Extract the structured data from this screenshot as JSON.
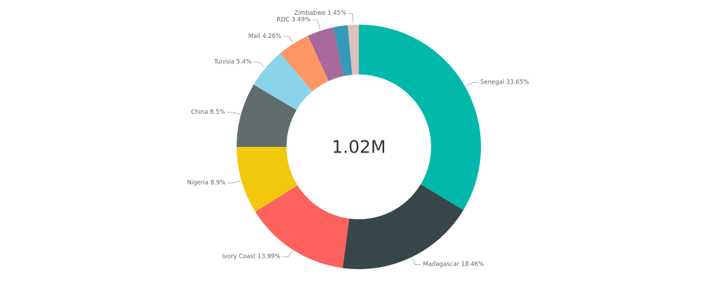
{
  "chart_data": {
    "type": "pie",
    "donut": true,
    "center_label": "1.02M",
    "legend": "none",
    "slices": [
      {
        "name": "Senegal",
        "value": 33.65,
        "label": "Senegal 33.65%",
        "color": "#01B8AA"
      },
      {
        "name": "Madagascar",
        "value": 18.46,
        "label": "Madagascar 18.46%",
        "color": "#374649"
      },
      {
        "name": "Ivory Coast",
        "value": 13.99,
        "label": "Ivory Coast 13.99%",
        "color": "#FD625E"
      },
      {
        "name": "Nigeria",
        "value": 8.9,
        "label": "Nigeria 8.9%",
        "color": "#F2C80F"
      },
      {
        "name": "China",
        "value": 8.5,
        "label": "China 8.5%",
        "color": "#5F6B6D"
      },
      {
        "name": "Tunisia",
        "value": 5.4,
        "label": "Tunisia 5.4%",
        "color": "#8AD4EB"
      },
      {
        "name": "Mali",
        "value": 4.26,
        "label": "Mali 4.26%",
        "color": "#FE9666"
      },
      {
        "name": "RDC",
        "value": 3.49,
        "label": "RDC 3.49%",
        "color": "#A66999"
      },
      {
        "name": "",
        "value": 1.9,
        "label": "",
        "color": "#3599B8"
      },
      {
        "name": "Zimbabwe",
        "value": 1.45,
        "label": "Zimbabwe 1.45%",
        "color": "#DFBFBF"
      }
    ]
  }
}
